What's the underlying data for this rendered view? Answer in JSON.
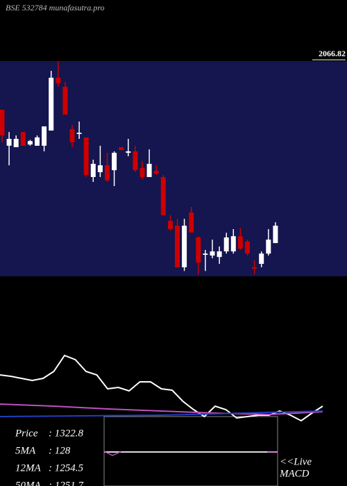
{
  "header": "BSE 532784 munafasutra.pro",
  "chart_data": [
    {
      "type": "candlestick",
      "categories": [
        null,
        null,
        null,
        null,
        null,
        null,
        null,
        null,
        null,
        null,
        null,
        null,
        null,
        null,
        null,
        null,
        null,
        null,
        null,
        null,
        null,
        null,
        null,
        null,
        null,
        null,
        null,
        null,
        null,
        null,
        null,
        null,
        null,
        null,
        null,
        null,
        null,
        null,
        null,
        null
      ],
      "open": [
        1868,
        1721,
        1715,
        1777,
        1726,
        1721,
        1721,
        1783,
        1999,
        1962,
        1789,
        1769,
        1755,
        1593,
        1613,
        1641,
        1621,
        1715,
        1692,
        1698,
        1630,
        1593,
        1618,
        1593,
        1414,
        1394,
        1224,
        1448,
        1346,
        1275,
        1272,
        1266,
        1289,
        1289,
        1351,
        1329,
        1224,
        1238,
        1280,
        1323
      ],
      "high": [
        1868,
        1777,
        1763,
        1777,
        1745,
        1763,
        1800,
        2027,
        2067,
        1982,
        1806,
        1820,
        1755,
        1664,
        1721,
        1692,
        1698,
        1715,
        1749,
        1721,
        1658,
        1706,
        1641,
        1601,
        1437,
        1422,
        1422,
        1471,
        1351,
        1295,
        1337,
        1309,
        1365,
        1380,
        1385,
        1337,
        1252,
        1289,
        1380,
        1408
      ],
      "low": [
        1735,
        1641,
        1715,
        1721,
        1721,
        1721,
        1698,
        1783,
        1962,
        1848,
        1715,
        1749,
        1593,
        1573,
        1593,
        1573,
        1556,
        1703,
        1678,
        1613,
        1584,
        1593,
        1601,
        1437,
        1374,
        1224,
        1209,
        1366,
        1195,
        1209,
        1261,
        1238,
        1280,
        1280,
        1295,
        1272,
        1195,
        1224,
        1272,
        1323
      ],
      "close": [
        1763,
        1749,
        1749,
        1721,
        1740,
        1755,
        1800,
        1999,
        1976,
        1848,
        1735,
        1774,
        1601,
        1647,
        1641,
        1579,
        1692,
        1703,
        1698,
        1621,
        1593,
        1647,
        1607,
        1437,
        1380,
        1224,
        1394,
        1366,
        1243,
        1280,
        1289,
        1289,
        1346,
        1351,
        1300,
        1280,
        1218,
        1280,
        1337,
        1394
      ],
      "up_color": "#ffffff",
      "down_color": "#cc0000",
      "ylim": [
        1187,
        2067
      ],
      "yticks": [
        2066.82
      ]
    },
    {
      "type": "line",
      "color": "#ffffff",
      "ylim": [
        0,
        120
      ],
      "values": [
        80,
        78,
        75,
        72,
        75,
        85,
        108,
        102,
        85,
        80,
        60,
        62,
        57,
        70,
        70,
        60,
        58,
        42,
        30,
        20,
        35,
        30,
        18,
        20,
        22,
        22,
        28,
        22,
        14,
        25,
        35
      ]
    },
    {
      "type": "line",
      "color": "#c050c0",
      "ylim": [
        0,
        120
      ],
      "values": [
        38,
        35,
        31,
        28,
        25,
        23,
        27
      ]
    },
    {
      "type": "line",
      "color": "#2040c0",
      "ylim": [
        0,
        120
      ],
      "values": [
        20,
        21,
        22,
        25,
        28
      ]
    }
  ],
  "info": [
    {
      "label": "Price",
      "value": ": 1322.8"
    },
    {
      "label": "5MA",
      "value": ": 128"
    },
    {
      "label": "12MA",
      "value": ": 1254.5"
    },
    {
      "label": "50MA",
      "value": ": 1251.7"
    }
  ],
  "live_label": "<<Live",
  "macd_label": "MACD"
}
